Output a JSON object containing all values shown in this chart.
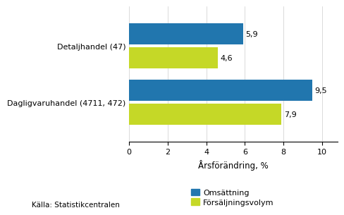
{
  "categories": [
    "Dagligvaruhandel (4711, 472)",
    "Detaljhandel (47)"
  ],
  "omsattning": [
    9.5,
    5.9
  ],
  "forsaljningsvolym": [
    7.9,
    4.6
  ],
  "bar_color_blue": "#2176AE",
  "bar_color_green": "#C5D827",
  "xlabel": "Årsförändring, %",
  "legend_omsattning": "Omsättning",
  "legend_forsaljning": "Försäljningsvolym",
  "source": "Källa: Statistikcentralen",
  "xlim": [
    0,
    10.8
  ],
  "xticks": [
    0,
    2,
    4,
    6,
    8,
    10
  ],
  "bar_height": 0.38,
  "bar_gap": 0.05,
  "label_fontsize": 8,
  "tick_fontsize": 8,
  "xlabel_fontsize": 8.5,
  "source_fontsize": 7.5,
  "legend_fontsize": 8
}
